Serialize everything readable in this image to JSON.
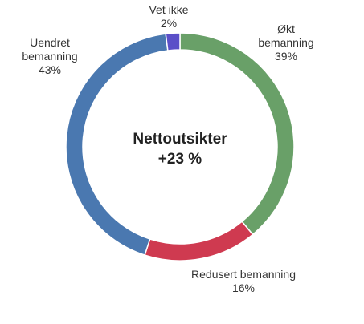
{
  "chart_data": {
    "type": "donut",
    "center_title": "Nettoutsikter",
    "center_value": "+23 %",
    "categories": [
      "Økt bemanning",
      "Redusert bemanning",
      "Uendret bemanning",
      "Vet ikke"
    ],
    "values": [
      39,
      16,
      43,
      2
    ],
    "value_labels": [
      "39%",
      "16%",
      "43%",
      "2%"
    ],
    "colors": [
      "#69a068",
      "#cf3a50",
      "#4a78b0",
      "#5b4fc8"
    ]
  }
}
